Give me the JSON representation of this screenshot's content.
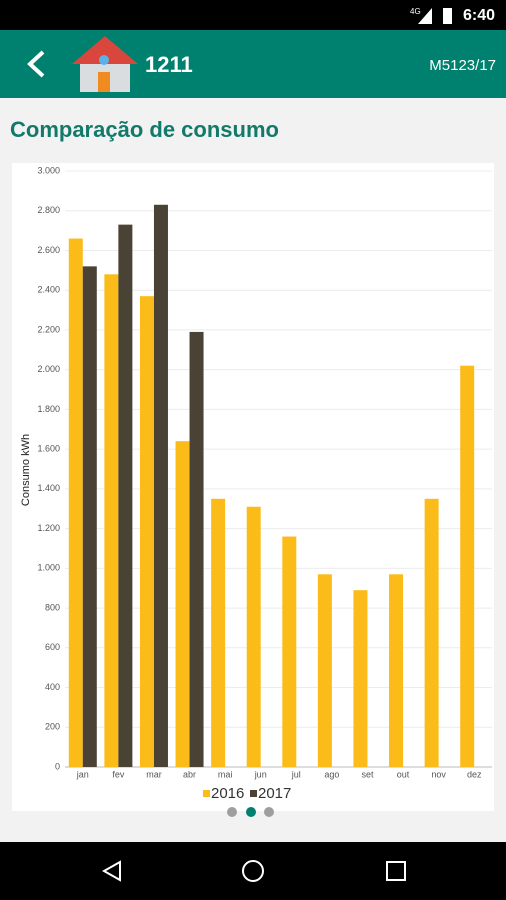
{
  "status": {
    "network": "4G",
    "time": "6:40"
  },
  "header": {
    "title": "1211",
    "code": "M5123/17"
  },
  "section_title": "Comparação de consumo",
  "chart_data": {
    "type": "bar",
    "y_label": "Consumo kWh",
    "categories": [
      "jan",
      "fev",
      "mar",
      "abr",
      "mai",
      "jun",
      "jul",
      "ago",
      "set",
      "out",
      "nov",
      "dez"
    ],
    "series": [
      {
        "name": "2016",
        "color": "#fbbc1a",
        "values": [
          2660,
          2480,
          2370,
          1640,
          1350,
          1310,
          1160,
          970,
          890,
          970,
          1350,
          2020
        ]
      },
      {
        "name": "2017",
        "color": "#4a4234",
        "values": [
          2520,
          2730,
          2830,
          2190,
          null,
          null,
          null,
          null,
          null,
          null,
          null,
          null
        ]
      }
    ],
    "ylim": [
      0,
      3000
    ],
    "yticks": [
      0,
      200,
      400,
      600,
      800,
      {
        "value": 1000,
        "label": "1.000"
      },
      {
        "value": 1200,
        "label": "1.200"
      },
      {
        "value": 1400,
        "label": "1.400"
      },
      {
        "value": 1600,
        "label": "1.600"
      },
      {
        "value": 1800,
        "label": "1.800"
      },
      {
        "value": 2000,
        "label": "2.000"
      },
      {
        "value": 2200,
        "label": "2.200"
      },
      {
        "value": 2400,
        "label": "2.400"
      },
      {
        "value": 2600,
        "label": "2.600"
      },
      {
        "value": 2800,
        "label": "2.800"
      },
      {
        "value": 3000,
        "label": "3.000"
      }
    ],
    "grid": true
  }
}
